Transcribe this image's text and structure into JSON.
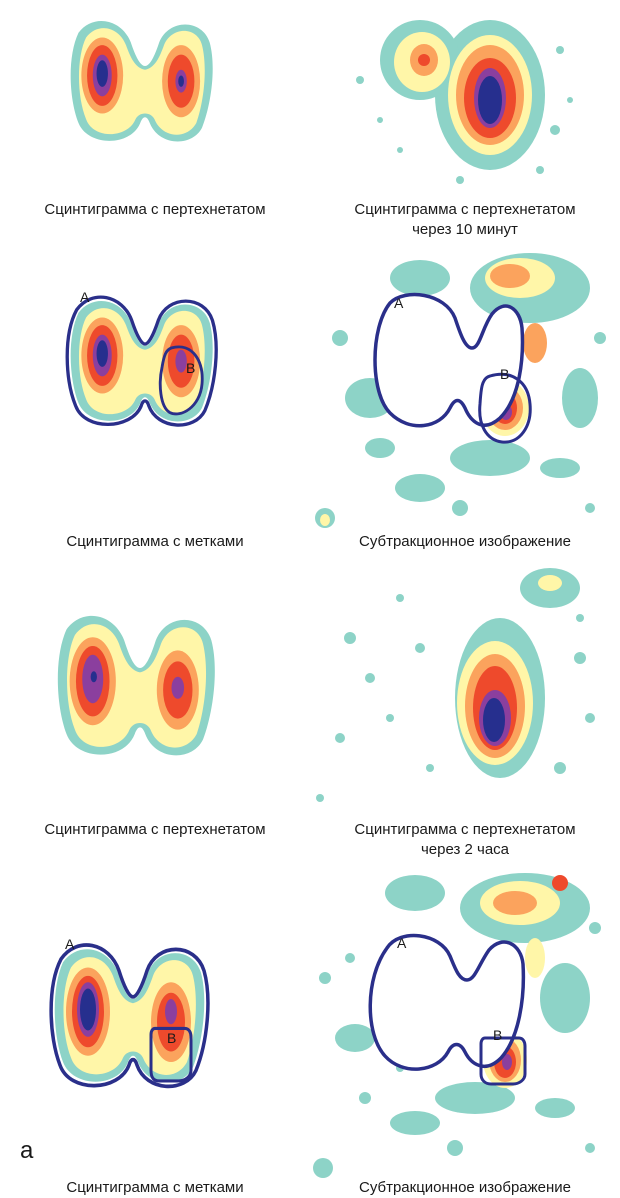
{
  "figure": {
    "label": "а",
    "rows": [
      {
        "left": {
          "caption": [
            "Сцинтиграмма с пертехнетатом"
          ]
        },
        "right": {
          "caption": [
            "Сцинтиграмма с пертехнетатом",
            "через 10 минут"
          ]
        }
      },
      {
        "left": {
          "caption": [
            "Сцинтиграмма с метками"
          ],
          "roi_labels": [
            "A",
            "B"
          ]
        },
        "right": {
          "caption": [
            "Субтракционное изображение"
          ],
          "roi_labels": [
            "A",
            "B"
          ]
        }
      },
      {
        "left": {
          "caption": [
            "Сцинтиграмма с пертехнетатом"
          ]
        },
        "right": {
          "caption": [
            "Сцинтиграмма с пертехнетатом",
            "через 2 часа"
          ]
        }
      },
      {
        "left": {
          "caption": [
            "Сцинтиграмма с метками"
          ],
          "roi_labels": [
            "A",
            "B"
          ]
        },
        "right": {
          "caption": [
            "Субтракционное изображение"
          ],
          "roi_labels": [
            "A",
            "B"
          ]
        }
      }
    ]
  },
  "colors": {
    "teal": "#8dd3c7",
    "yellow": "#fff6a8",
    "orange": "#fba35d",
    "red": "#ee4a2c",
    "purple": "#8b3f9e",
    "navy": "#262f8e",
    "roi": "#2a2f8a"
  }
}
